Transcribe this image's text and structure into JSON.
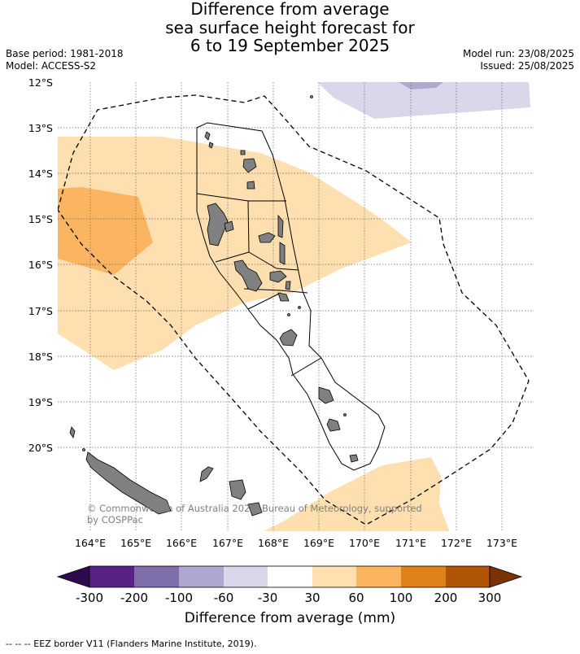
{
  "title": {
    "line1": "Difference from average",
    "line2": "sea surface height forecast for",
    "line3": "6 to 19 September 2025"
  },
  "meta": {
    "base_period": "Base period: 1981-2018",
    "model": "Model: ACCESS-S2",
    "model_run": "Model run: 23/08/2025",
    "issued": "Issued: 25/08/2025"
  },
  "map": {
    "lat_labels": [
      "12°S",
      "13°S",
      "14°S",
      "15°S",
      "16°S",
      "17°S",
      "18°S",
      "19°S",
      "20°S"
    ],
    "lon_labels": [
      "164°E",
      "165°E",
      "166°E",
      "167°E",
      "168°E",
      "169°E",
      "170°E",
      "171°E",
      "172°E",
      "173°E"
    ],
    "copyright": "© Commonwealth of Australia 2025, Bureau of Meteorology, supported by COSPPac",
    "copyright_line1": "© Commonwealth of Australia 2025, Bureau of Meteorology, supported",
    "copyright_line2": "by COSPPac",
    "colors": {
      "land": "#808080",
      "pale_orange": "#fddfb0",
      "orange": "#fbb460",
      "pale_purple": "#d8d8ea",
      "purple": "#b0a8d0"
    }
  },
  "colorbar": {
    "title": "Difference from average (mm)",
    "ticks": [
      "-300",
      "-200",
      "-100",
      "-60",
      "-30",
      "30",
      "60",
      "100",
      "200",
      "300"
    ],
    "colors": [
      "#2e0a4e",
      "#572186",
      "#7e6faa",
      "#aea7cf",
      "#d8d8ea",
      "#ffffff",
      "#fddfb0",
      "#fbb460",
      "#e0821a",
      "#b05408",
      "#7a3404"
    ]
  },
  "footnote": "--  --  -- EEZ border V11 (Flanders Marine Institute, 2019)."
}
